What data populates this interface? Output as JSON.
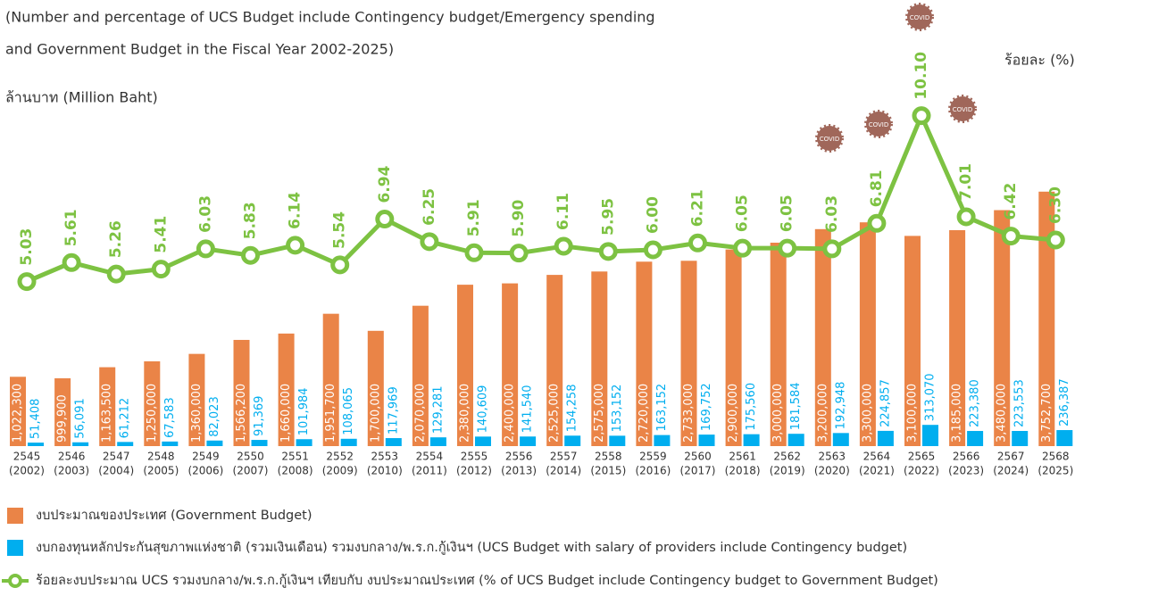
{
  "chart_data": {
    "type": "bar-line",
    "title": "(Number and percentage of UCS Budget include Contingency budget/Emergency spending",
    "subtitle": "and Government Budget in the Fiscal Year 2002-2025)",
    "y_label": "ล้านบาท (Million Baht)",
    "y2_label": "ร้อยละ (%)",
    "covid_label": "COVID",
    "categories": [
      "2545",
      "2546",
      "2547",
      "2548",
      "2549",
      "2550",
      "2551",
      "2552",
      "2553",
      "2554",
      "2555",
      "2556",
      "2557",
      "2558",
      "2559",
      "2560",
      "2561",
      "2562",
      "2563",
      "2564",
      "2565",
      "2566",
      "2567",
      "2568"
    ],
    "categories_ce": [
      "(2002)",
      "(2003)",
      "(2004)",
      "(2005)",
      "(2006)",
      "(2007)",
      "(2008)",
      "(2009)",
      "(2010)",
      "(2011)",
      "(2012)",
      "(2013)",
      "(2014)",
      "(2015)",
      "(2016)",
      "(2017)",
      "(2018)",
      "(2019)",
      "(2020)",
      "(2021)",
      "(2022)",
      "(2023)",
      "(2024)",
      "(2025)"
    ],
    "ylim": [
      0,
      4000000
    ],
    "y2lim": [
      0,
      12
    ],
    "series": [
      {
        "name": "งบประมาณของประเทศ (Government Budget)",
        "color": "#ea8447",
        "values": [
          1022300,
          999900,
          1163500,
          1250000,
          1360000,
          1566200,
          1660000,
          1951700,
          1700000,
          2070000,
          2380000,
          2400000,
          2525000,
          2575000,
          2720000,
          2733000,
          2900000,
          3000000,
          3200000,
          3300000,
          3100000,
          3185000,
          3480000,
          3752700
        ],
        "value_labels": [
          "1,022,300",
          "999,900",
          "1,163,500",
          "1,250,000",
          "1,360,000",
          "1,566,200",
          "1,660,000",
          "1,951,700",
          "1,700,000",
          "2,070,000",
          "2,380,000",
          "2,400,000",
          "2,525,000",
          "2,575,000",
          "2,720,000",
          "2,733,000",
          "2,900,000",
          "3,000,000",
          "3,200,000",
          "3,300,000",
          "3,100,000",
          "3,185,000",
          "3,480,000",
          "3,752,700"
        ]
      },
      {
        "name": "งบกองทุนหลักประกันสุขภาพแห่งชาติ (รวมเงินเดือน) รวมงบกลาง/พ.ร.ก.กู้เงินฯ (UCS Budget with salary of providers include Contingency budget)",
        "color": "#00aeef",
        "values": [
          51408,
          56091,
          61212,
          67583,
          82023,
          91369,
          101984,
          108065,
          117969,
          129281,
          140609,
          141540,
          154258,
          153152,
          163152,
          169752,
          175560,
          181584,
          192948,
          224857,
          313070,
          223380,
          223553,
          236387
        ],
        "value_labels": [
          "51,408",
          "56,091",
          "61,212",
          "67,583",
          "82,023",
          "91,369",
          "101,984",
          "108,065",
          "117,969",
          "129,281",
          "140,609",
          "141,540",
          "154,258",
          "153,152",
          "163,152",
          "169,752",
          "175,560",
          "181,584",
          "192,948",
          "224,857",
          "313,070",
          "223,380",
          "223,553",
          "236,387"
        ]
      },
      {
        "name": "ร้อยละงบประมาณ UCS รวมงบกลาง/พ.ร.ก.กู้เงินฯ เทียบกับ งบประมาณประเทศ (% of UCS Budget include Contingency budget to Government Budget)",
        "color": "#7dc242",
        "axis": "y2",
        "values": [
          5.03,
          5.61,
          5.26,
          5.41,
          6.03,
          5.83,
          6.14,
          5.54,
          6.94,
          6.25,
          5.91,
          5.9,
          6.11,
          5.95,
          6.0,
          6.21,
          6.05,
          6.05,
          6.03,
          6.81,
          10.1,
          7.01,
          6.42,
          6.3
        ],
        "value_labels": [
          "5.03",
          "5.61",
          "5.26",
          "5.41",
          "6.03",
          "5.83",
          "6.14",
          "5.54",
          "6.94",
          "6.25",
          "5.91",
          "5.90",
          "6.11",
          "5.95",
          "6.00",
          "6.21",
          "6.05",
          "6.05",
          "6.03",
          "6.81",
          "10.10",
          "7.01",
          "6.42",
          "6.30"
        ]
      }
    ]
  }
}
